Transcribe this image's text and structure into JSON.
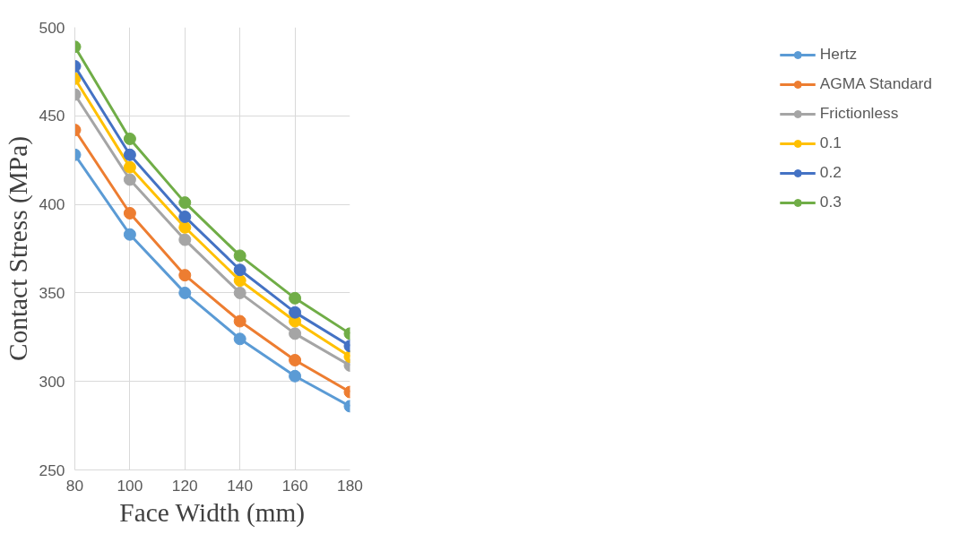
{
  "chart_data": {
    "type": "line",
    "xlabel": "Face Width (mm)",
    "ylabel": "Contact Stress (MPa)",
    "x": [
      80,
      100,
      120,
      140,
      160,
      180
    ],
    "series": [
      {
        "name": "Hertz",
        "color": "#5b9bd5",
        "values": [
          428,
          383,
          350,
          324,
          303,
          286
        ]
      },
      {
        "name": "AGMA Standard",
        "color": "#ed7d31",
        "values": [
          442,
          395,
          360,
          334,
          312,
          294
        ]
      },
      {
        "name": "Frictionless",
        "color": "#a5a5a5",
        "values": [
          462,
          414,
          380,
          350,
          327,
          309
        ]
      },
      {
        "name": "0.1",
        "color": "#ffc000",
        "values": [
          471,
          421,
          387,
          357,
          334,
          314
        ]
      },
      {
        "name": "0.2",
        "color": "#4472c4",
        "values": [
          478,
          428,
          393,
          363,
          339,
          320
        ]
      },
      {
        "name": "0.3",
        "color": "#70ad47",
        "values": [
          489,
          437,
          401,
          371,
          347,
          327
        ]
      }
    ],
    "xlim": [
      80,
      180
    ],
    "xticks": [
      80,
      100,
      120,
      140,
      160,
      180
    ],
    "ylim": [
      250,
      500
    ],
    "yticks": [
      250,
      300,
      350,
      400,
      450,
      500
    ],
    "grid": true,
    "legend": "right",
    "marker": "circle",
    "line_style": "solid"
  }
}
